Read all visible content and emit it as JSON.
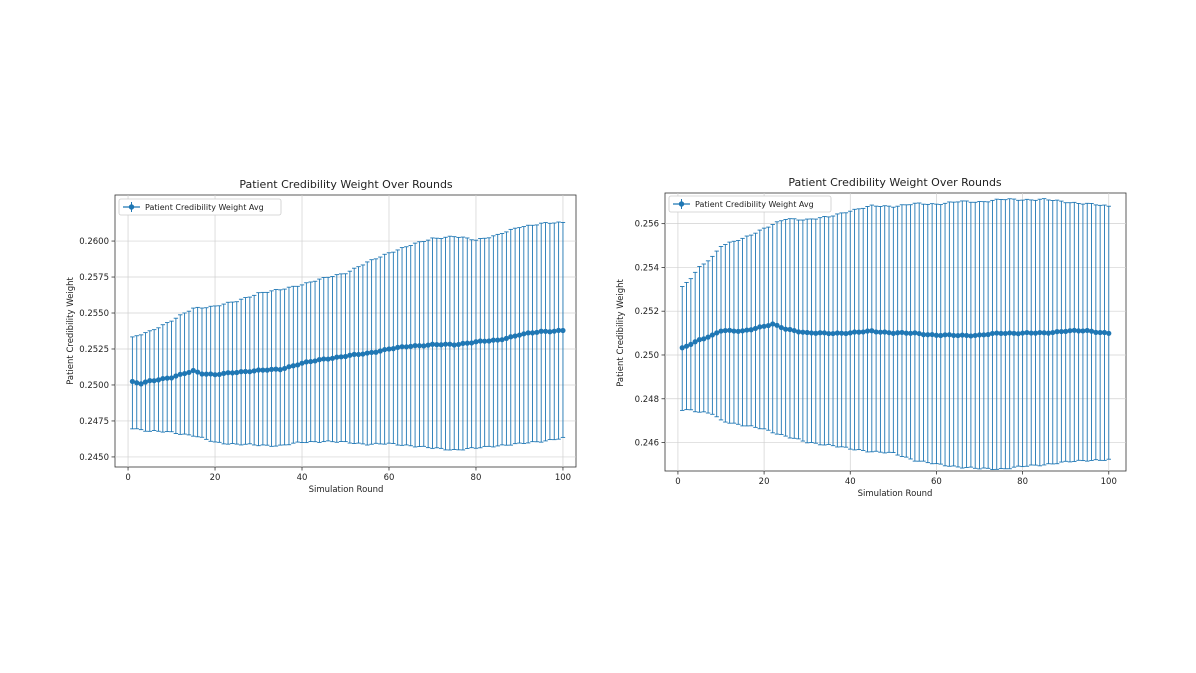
{
  "chart_data": [
    {
      "type": "line",
      "title": "Patient Credibility Weight Over Rounds",
      "xlabel": "Simulation Round",
      "ylabel": "Patient Credibility Weight",
      "legend": "Patient Credibility Weight Avg",
      "legend_position": "top-left",
      "grid": true,
      "xlim": [
        -3,
        103
      ],
      "ylim": [
        0.2443,
        0.2632
      ],
      "xticks": [
        0,
        20,
        40,
        60,
        80,
        100
      ],
      "xtick_labels": [
        "0",
        "20",
        "40",
        "60",
        "80",
        "100"
      ],
      "yticks": [
        0.245,
        0.2475,
        0.25,
        0.2525,
        0.255,
        0.2575,
        0.26
      ],
      "ytick_labels": [
        "0.2450",
        "0.2475",
        "0.2500",
        "0.2525",
        "0.2550",
        "0.2575",
        "0.2600"
      ],
      "color": "#1f77b4",
      "mean_keypoints": [
        [
          1,
          0.2502
        ],
        [
          3,
          0.2501
        ],
        [
          5,
          0.2503
        ],
        [
          10,
          0.2505
        ],
        [
          15,
          0.251
        ],
        [
          17,
          0.2508
        ],
        [
          20,
          0.2507
        ],
        [
          25,
          0.2509
        ],
        [
          30,
          0.251
        ],
        [
          35,
          0.2511
        ],
        [
          40,
          0.2515
        ],
        [
          45,
          0.2518
        ],
        [
          50,
          0.252
        ],
        [
          55,
          0.2522
        ],
        [
          60,
          0.2525
        ],
        [
          65,
          0.2527
        ],
        [
          70,
          0.2528
        ],
        [
          75,
          0.2528
        ],
        [
          80,
          0.253
        ],
        [
          85,
          0.2531
        ],
        [
          90,
          0.2535
        ],
        [
          95,
          0.2537
        ],
        [
          100,
          0.2538
        ]
      ],
      "upper_keypoints": [
        [
          1,
          0.2533
        ],
        [
          5,
          0.2537
        ],
        [
          10,
          0.2545
        ],
        [
          15,
          0.2553
        ],
        [
          20,
          0.2555
        ],
        [
          25,
          0.2558
        ],
        [
          30,
          0.2564
        ],
        [
          35,
          0.2566
        ],
        [
          40,
          0.257
        ],
        [
          45,
          0.2574
        ],
        [
          50,
          0.2578
        ],
        [
          55,
          0.2585
        ],
        [
          60,
          0.2592
        ],
        [
          65,
          0.2597
        ],
        [
          70,
          0.2602
        ],
        [
          75,
          0.2603
        ],
        [
          80,
          0.2601
        ],
        [
          85,
          0.2604
        ],
        [
          90,
          0.261
        ],
        [
          95,
          0.2612
        ],
        [
          100,
          0.2613
        ]
      ],
      "lower_keypoints": [
        [
          1,
          0.247
        ],
        [
          5,
          0.2468
        ],
        [
          10,
          0.2467
        ],
        [
          15,
          0.2465
        ],
        [
          20,
          0.246
        ],
        [
          25,
          0.2459
        ],
        [
          30,
          0.2458
        ],
        [
          35,
          0.2458
        ],
        [
          40,
          0.246
        ],
        [
          45,
          0.2461
        ],
        [
          50,
          0.246
        ],
        [
          55,
          0.2459
        ],
        [
          60,
          0.2459
        ],
        [
          65,
          0.2458
        ],
        [
          70,
          0.2456
        ],
        [
          75,
          0.2455
        ],
        [
          80,
          0.2456
        ],
        [
          85,
          0.2458
        ],
        [
          90,
          0.2459
        ],
        [
          95,
          0.2461
        ],
        [
          100,
          0.2463
        ]
      ]
    },
    {
      "type": "line",
      "title": "Patient Credibility Weight Over Rounds",
      "xlabel": "Simulation Round",
      "ylabel": "Patient Credibility Weight",
      "legend": "Patient Credibility Weight Avg",
      "legend_position": "top-left",
      "grid": true,
      "xlim": [
        -3,
        104
      ],
      "ylim": [
        0.2447,
        0.2574
      ],
      "xticks": [
        0,
        20,
        40,
        60,
        80,
        100
      ],
      "xtick_labels": [
        "0",
        "20",
        "40",
        "60",
        "80",
        "100"
      ],
      "yticks": [
        0.246,
        0.248,
        0.25,
        0.252,
        0.254,
        0.256
      ],
      "ytick_labels": [
        "0.246",
        "0.248",
        "0.250",
        "0.252",
        "0.254",
        "0.256"
      ],
      "color": "#1f77b4",
      "mean_keypoints": [
        [
          1,
          0.2503
        ],
        [
          3,
          0.2505
        ],
        [
          5,
          0.2507
        ],
        [
          8,
          0.2509
        ],
        [
          10,
          0.2511
        ],
        [
          15,
          0.2511
        ],
        [
          20,
          0.2513
        ],
        [
          22,
          0.2514
        ],
        [
          25,
          0.2512
        ],
        [
          30,
          0.251
        ],
        [
          35,
          0.251
        ],
        [
          40,
          0.251
        ],
        [
          45,
          0.2511
        ],
        [
          50,
          0.251
        ],
        [
          55,
          0.251
        ],
        [
          60,
          0.2509
        ],
        [
          65,
          0.2509
        ],
        [
          70,
          0.2509
        ],
        [
          75,
          0.251
        ],
        [
          80,
          0.251
        ],
        [
          85,
          0.251
        ],
        [
          90,
          0.2511
        ],
        [
          95,
          0.2511
        ],
        [
          100,
          0.251
        ]
      ],
      "upper_keypoints": [
        [
          1,
          0.2531
        ],
        [
          3,
          0.2535
        ],
        [
          5,
          0.254
        ],
        [
          8,
          0.2545
        ],
        [
          10,
          0.255
        ],
        [
          15,
          0.2553
        ],
        [
          20,
          0.2558
        ],
        [
          25,
          0.2562
        ],
        [
          30,
          0.2562
        ],
        [
          35,
          0.2563
        ],
        [
          40,
          0.2566
        ],
        [
          45,
          0.2568
        ],
        [
          50,
          0.2568
        ],
        [
          55,
          0.2569
        ],
        [
          60,
          0.2569
        ],
        [
          65,
          0.257
        ],
        [
          70,
          0.257
        ],
        [
          75,
          0.2571
        ],
        [
          80,
          0.2571
        ],
        [
          85,
          0.2571
        ],
        [
          90,
          0.257
        ],
        [
          95,
          0.2569
        ],
        [
          100,
          0.2568
        ]
      ],
      "lower_keypoints": [
        [
          1,
          0.2475
        ],
        [
          3,
          0.2475
        ],
        [
          5,
          0.2474
        ],
        [
          8,
          0.2473
        ],
        [
          10,
          0.247
        ],
        [
          15,
          0.2468
        ],
        [
          20,
          0.2466
        ],
        [
          25,
          0.2463
        ],
        [
          30,
          0.246
        ],
        [
          35,
          0.2459
        ],
        [
          40,
          0.2457
        ],
        [
          45,
          0.2456
        ],
        [
          50,
          0.2455
        ],
        [
          55,
          0.2452
        ],
        [
          60,
          0.245
        ],
        [
          65,
          0.2449
        ],
        [
          70,
          0.2448
        ],
        [
          75,
          0.2448
        ],
        [
          80,
          0.2449
        ],
        [
          85,
          0.245
        ],
        [
          90,
          0.2451
        ],
        [
          95,
          0.2452
        ],
        [
          100,
          0.2452
        ]
      ]
    }
  ]
}
